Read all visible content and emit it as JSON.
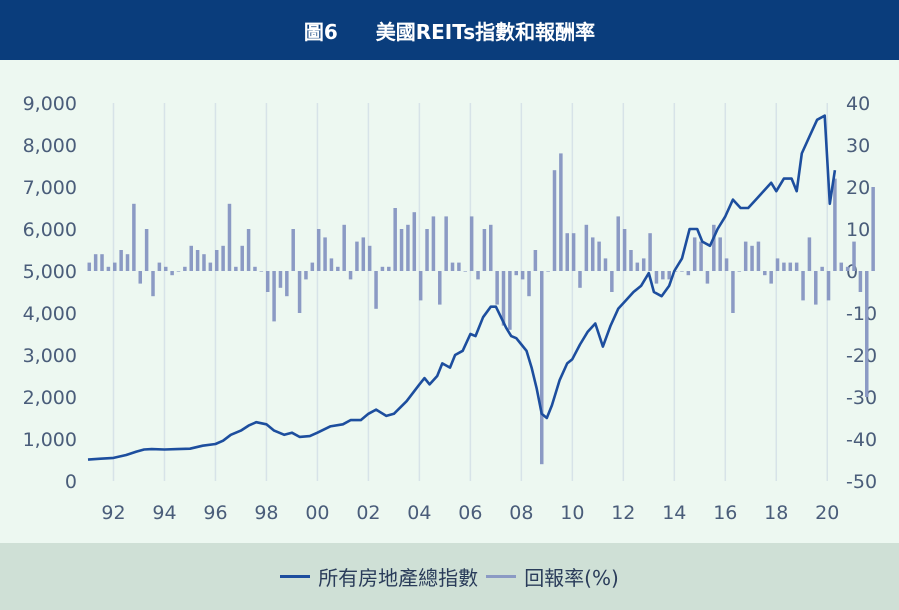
{
  "title": {
    "figure_no": "圖6",
    "text": "美國REITs指數和報酬率"
  },
  "legend": [
    {
      "label": "所有房地產總指數",
      "color": "#1d4e9e"
    },
    {
      "label": "回報率(%)",
      "color": "#8b9ac4"
    }
  ],
  "chart_data": {
    "type": "line+bar",
    "title": "美國REITs指數和報酬率",
    "x_tick_labels": [
      "92",
      "94",
      "96",
      "98",
      "00",
      "02",
      "04",
      "06",
      "08",
      "10",
      "12",
      "14",
      "16",
      "18",
      "20"
    ],
    "x_tick_years": [
      1992,
      1994,
      1996,
      1998,
      2000,
      2002,
      2004,
      2006,
      2008,
      2010,
      2012,
      2014,
      2016,
      2018,
      2020
    ],
    "x_range": [
      1991.0,
      2020.5
    ],
    "y_left": {
      "range": [
        0,
        9000
      ],
      "ticks": [
        "0",
        "1,000",
        "2,000",
        "3,000",
        "4,000",
        "5,000",
        "6,000",
        "7,000",
        "8,000",
        "9,000"
      ]
    },
    "y_right": {
      "range": [
        -50,
        40
      ],
      "ticks": [
        "-50",
        "-40",
        "-30",
        "-20",
        "-10",
        "0",
        "10",
        "20",
        "30",
        "40"
      ]
    },
    "grid": "vertical",
    "series": [
      {
        "name": "所有房地產總指數",
        "axis": "left",
        "color": "#1d4e9e",
        "points": [
          [
            1991.0,
            510
          ],
          [
            1991.5,
            530
          ],
          [
            1992.0,
            550
          ],
          [
            1992.5,
            620
          ],
          [
            1992.9,
            700
          ],
          [
            1993.2,
            750
          ],
          [
            1993.5,
            760
          ],
          [
            1994.0,
            750
          ],
          [
            1994.5,
            760
          ],
          [
            1995.0,
            770
          ],
          [
            1995.5,
            840
          ],
          [
            1996.0,
            880
          ],
          [
            1996.3,
            960
          ],
          [
            1996.6,
            1100
          ],
          [
            1997.0,
            1200
          ],
          [
            1997.3,
            1320
          ],
          [
            1997.6,
            1400
          ],
          [
            1998.0,
            1350
          ],
          [
            1998.3,
            1200
          ],
          [
            1998.7,
            1100
          ],
          [
            1999.0,
            1150
          ],
          [
            1999.3,
            1050
          ],
          [
            1999.7,
            1070
          ],
          [
            2000.0,
            1150
          ],
          [
            2000.5,
            1300
          ],
          [
            2001.0,
            1350
          ],
          [
            2001.3,
            1450
          ],
          [
            2001.7,
            1450
          ],
          [
            2002.0,
            1600
          ],
          [
            2002.3,
            1700
          ],
          [
            2002.7,
            1550
          ],
          [
            2003.0,
            1600
          ],
          [
            2003.5,
            1900
          ],
          [
            2004.0,
            2300
          ],
          [
            2004.2,
            2450
          ],
          [
            2004.4,
            2300
          ],
          [
            2004.7,
            2500
          ],
          [
            2004.9,
            2800
          ],
          [
            2005.2,
            2700
          ],
          [
            2005.4,
            3000
          ],
          [
            2005.7,
            3100
          ],
          [
            2006.0,
            3500
          ],
          [
            2006.2,
            3450
          ],
          [
            2006.5,
            3900
          ],
          [
            2006.8,
            4150
          ],
          [
            2007.0,
            4150
          ],
          [
            2007.2,
            3900
          ],
          [
            2007.4,
            3650
          ],
          [
            2007.6,
            3450
          ],
          [
            2007.8,
            3400
          ],
          [
            2008.0,
            3250
          ],
          [
            2008.2,
            3100
          ],
          [
            2008.4,
            2700
          ],
          [
            2008.6,
            2200
          ],
          [
            2008.8,
            1600
          ],
          [
            2009.0,
            1500
          ],
          [
            2009.2,
            1800
          ],
          [
            2009.5,
            2400
          ],
          [
            2009.8,
            2800
          ],
          [
            2010.0,
            2900
          ],
          [
            2010.3,
            3250
          ],
          [
            2010.6,
            3550
          ],
          [
            2010.9,
            3750
          ],
          [
            2011.2,
            3200
          ],
          [
            2011.5,
            3700
          ],
          [
            2011.8,
            4100
          ],
          [
            2012.1,
            4300
          ],
          [
            2012.4,
            4500
          ],
          [
            2012.7,
            4650
          ],
          [
            2013.0,
            4950
          ],
          [
            2013.2,
            4500
          ],
          [
            2013.5,
            4400
          ],
          [
            2013.8,
            4650
          ],
          [
            2014.0,
            5000
          ],
          [
            2014.3,
            5300
          ],
          [
            2014.6,
            6000
          ],
          [
            2014.9,
            6000
          ],
          [
            2015.1,
            5700
          ],
          [
            2015.4,
            5600
          ],
          [
            2015.7,
            6000
          ],
          [
            2016.0,
            6300
          ],
          [
            2016.3,
            6700
          ],
          [
            2016.6,
            6500
          ],
          [
            2016.9,
            6500
          ],
          [
            2017.2,
            6700
          ],
          [
            2017.5,
            6900
          ],
          [
            2017.8,
            7100
          ],
          [
            2018.0,
            6900
          ],
          [
            2018.3,
            7200
          ],
          [
            2018.6,
            7200
          ],
          [
            2018.8,
            6900
          ],
          [
            2019.0,
            7800
          ],
          [
            2019.3,
            8200
          ],
          [
            2019.6,
            8600
          ],
          [
            2019.9,
            8700
          ],
          [
            2020.1,
            6600
          ],
          [
            2020.3,
            7400
          ]
        ]
      },
      {
        "name": "回報率(%)",
        "axis": "right",
        "color": "#8b9ac4",
        "x_start": 1991.05,
        "x_step": 0.25,
        "values": [
          2,
          4,
          4,
          1,
          2,
          5,
          4,
          16,
          -3,
          10,
          -6,
          2,
          1,
          -1,
          0,
          1,
          6,
          5,
          4,
          2,
          5,
          6,
          16,
          1,
          6,
          10,
          1,
          0,
          -5,
          -12,
          -4,
          -6,
          10,
          -10,
          -2,
          2,
          10,
          8,
          3,
          1,
          11,
          -2,
          7,
          8,
          6,
          -9,
          1,
          1,
          15,
          10,
          11,
          14,
          -7,
          10,
          13,
          -8,
          13,
          2,
          2,
          0,
          13,
          -2,
          10,
          11,
          -8,
          -13,
          -14,
          -1,
          -2,
          -6,
          5,
          -46,
          0,
          24,
          28,
          9,
          9,
          -4,
          11,
          8,
          7,
          3,
          -5,
          13,
          10,
          5,
          2,
          3,
          9,
          -3,
          -2,
          -2,
          0,
          0,
          -1,
          8,
          7,
          -3,
          11,
          8,
          3,
          -10,
          0,
          7,
          6,
          7,
          -1,
          -3,
          3,
          2,
          2,
          2,
          -7,
          8,
          -8,
          1,
          -7,
          22,
          2,
          1,
          7,
          -5,
          -30,
          20
        ]
      }
    ]
  }
}
